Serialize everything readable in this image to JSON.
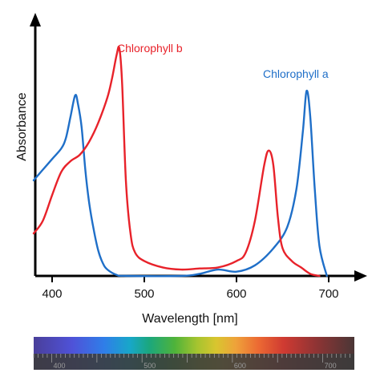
{
  "chart_data": {
    "type": "line",
    "xlabel": "Wavelength [nm]",
    "ylabel": "Absorbance",
    "xlim": [
      380,
      720
    ],
    "ylim": [
      0,
      1
    ],
    "x_ticks": [
      "400",
      "500",
      "600",
      "700"
    ],
    "series": [
      {
        "name": "Chlorophyll a",
        "color": "#1f6fc8",
        "x": [
          380,
          390,
          400,
          410,
          415,
          420,
          425,
          428,
          432,
          436,
          440,
          445,
          450,
          455,
          460,
          470,
          480,
          540,
          560,
          580,
          600,
          620,
          640,
          655,
          665,
          672,
          676,
          680,
          685,
          690,
          698
        ],
        "y": [
          0.45,
          0.5,
          0.55,
          0.6,
          0.65,
          0.75,
          0.85,
          0.81,
          0.7,
          0.5,
          0.35,
          0.22,
          0.12,
          0.06,
          0.03,
          0.005,
          0.0,
          0.0,
          0.01,
          0.03,
          0.02,
          0.05,
          0.13,
          0.23,
          0.41,
          0.68,
          0.87,
          0.75,
          0.4,
          0.14,
          0.0
        ]
      },
      {
        "name": "Chlorophyll b",
        "color": "#e8222a",
        "x": [
          380,
          390,
          400,
          410,
          420,
          430,
          440,
          450,
          460,
          465,
          470,
          473,
          476,
          480,
          485,
          490,
          500,
          520,
          540,
          560,
          580,
          600,
          610,
          620,
          630,
          635,
          640,
          645,
          650,
          660,
          670,
          680,
          690
        ],
        "y": [
          0.2,
          0.26,
          0.38,
          0.49,
          0.54,
          0.57,
          0.63,
          0.72,
          0.84,
          0.93,
          1.04,
          1.07,
          0.9,
          0.45,
          0.2,
          0.11,
          0.07,
          0.04,
          0.03,
          0.035,
          0.04,
          0.07,
          0.11,
          0.26,
          0.52,
          0.59,
          0.52,
          0.27,
          0.13,
          0.07,
          0.04,
          0.01,
          0.0
        ]
      }
    ],
    "grid": false,
    "legend": "labels next to curves"
  },
  "spectrum_bar": {
    "labels": [
      "400",
      "500",
      "600",
      "700"
    ]
  }
}
